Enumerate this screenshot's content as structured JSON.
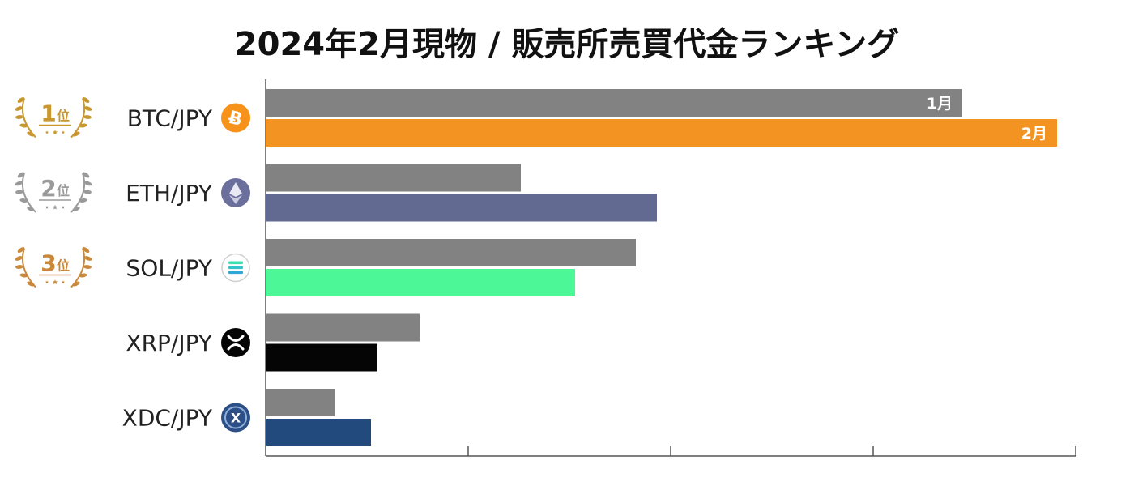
{
  "title": "2024年2月現物 / 販売所売買代金ランキング",
  "colors": {
    "prev_month": "#828282",
    "axis": "#555555"
  },
  "rank_badges": [
    {
      "num": "1",
      "suffix": "位",
      "color": "#c8972f"
    },
    {
      "num": "2",
      "suffix": "位",
      "color": "#9a9a9a"
    },
    {
      "num": "3",
      "suffix": "位",
      "color": "#c9883a"
    }
  ],
  "chart_data": {
    "type": "bar",
    "orientation": "horizontal",
    "categories": [
      "BTC/JPY",
      "ETH/JPY",
      "SOL/JPY",
      "XRP/JPY",
      "XDC/JPY"
    ],
    "series": [
      {
        "name": "1月",
        "color": "#828282",
        "values": [
          86,
          31.5,
          45.7,
          19,
          8.5
        ]
      },
      {
        "name": "2月",
        "colors": [
          "#f39322",
          "#636a91",
          "#4bf796",
          "#050505",
          "#234a7c"
        ],
        "values": [
          97.7,
          48.3,
          38.2,
          13.8,
          13
        ]
      }
    ],
    "xlim": [
      0,
      100
    ],
    "grid": false,
    "legend": "inline labels on first category bars",
    "icons": [
      "bitcoin-icon",
      "ethereum-icon",
      "solana-icon",
      "xrp-icon",
      "xdc-icon"
    ],
    "icon_colors": [
      "#f7931a",
      "#6b6f9c",
      "#ffffff",
      "#050505",
      "#2b4f86"
    ]
  }
}
